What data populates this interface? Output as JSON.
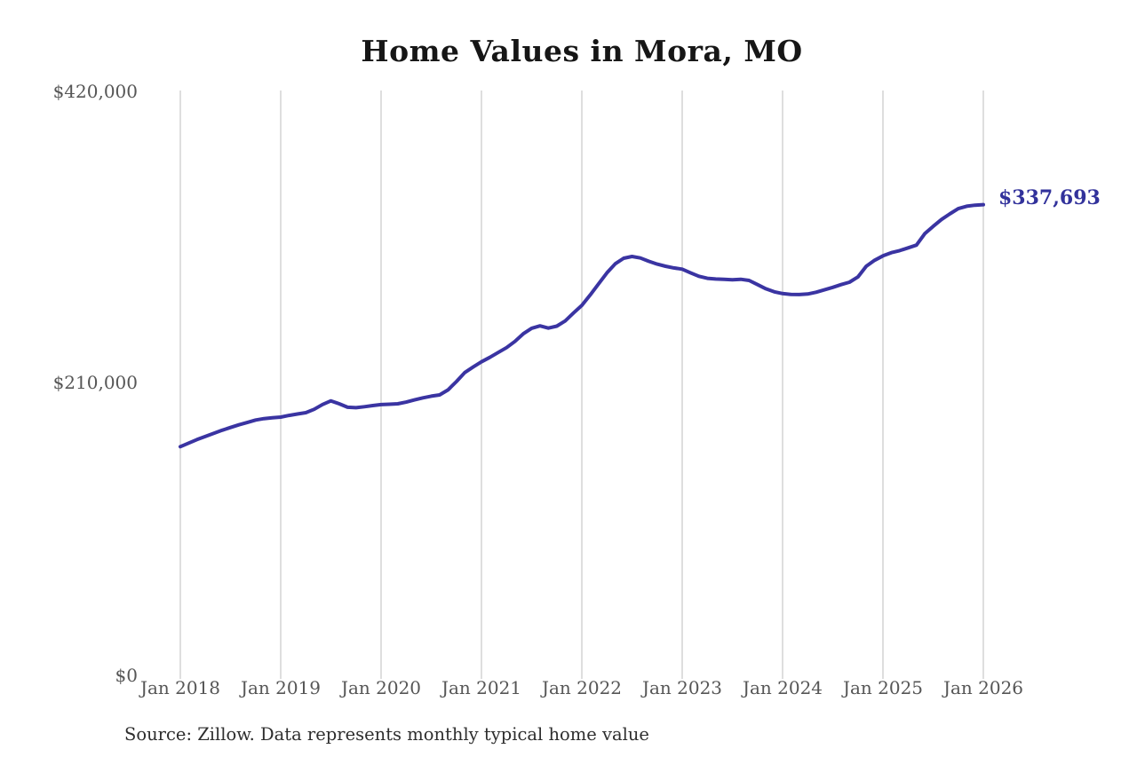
{
  "title": "Home Values in Mora, MO",
  "source_note": "Source: Zillow. Data represents monthly typical home value",
  "annotation": {
    "end_value_label": "$337,693"
  },
  "y_axis": {
    "ticks": [
      "$420,000",
      "$210,000",
      "$0"
    ]
  },
  "x_axis": {
    "ticks": [
      "Jan 2018",
      "Jan 2019",
      "Jan 2020",
      "Jan 2021",
      "Jan 2022",
      "Jan 2023",
      "Jan 2024",
      "Jan 2025",
      "Jan 2026"
    ]
  },
  "colors": {
    "line": "#3a34a2",
    "end_label": "#32329b",
    "gridline": "#c8c8c8",
    "axis_text": "#565656",
    "title_text": "#161616",
    "source_text": "#2e2e2e",
    "background": "#ffffff"
  },
  "chart_data": {
    "type": "line",
    "title": "Home Values in Mora, MO",
    "xlabel": "",
    "ylabel": "",
    "ylim": [
      0,
      420000
    ],
    "yticks": [
      0,
      210000,
      420000
    ],
    "grid": "vertical gridlines at each January, no horizontal gridlines",
    "legend": "none",
    "x": [
      "2018-01",
      "2018-02",
      "2018-03",
      "2018-04",
      "2018-05",
      "2018-06",
      "2018-07",
      "2018-08",
      "2018-09",
      "2018-10",
      "2018-11",
      "2018-12",
      "2019-01",
      "2019-02",
      "2019-03",
      "2019-04",
      "2019-05",
      "2019-06",
      "2019-07",
      "2019-08",
      "2019-09",
      "2019-10",
      "2019-11",
      "2019-12",
      "2020-01",
      "2020-02",
      "2020-03",
      "2020-04",
      "2020-05",
      "2020-06",
      "2020-07",
      "2020-08",
      "2020-09",
      "2020-10",
      "2020-11",
      "2020-12",
      "2021-01",
      "2021-02",
      "2021-03",
      "2021-04",
      "2021-05",
      "2021-06",
      "2021-07",
      "2021-08",
      "2021-09",
      "2021-10",
      "2021-11",
      "2021-12",
      "2022-01",
      "2022-02",
      "2022-03",
      "2022-04",
      "2022-05",
      "2022-06",
      "2022-07",
      "2022-08",
      "2022-09",
      "2022-10",
      "2022-11",
      "2022-12",
      "2023-01",
      "2023-02",
      "2023-03",
      "2023-04",
      "2023-05",
      "2023-06",
      "2023-07",
      "2023-08",
      "2023-09",
      "2023-10",
      "2023-11",
      "2023-12",
      "2024-01",
      "2024-02",
      "2024-03",
      "2024-04",
      "2024-05",
      "2024-06",
      "2024-07",
      "2024-08",
      "2024-09",
      "2024-10",
      "2024-11",
      "2024-12",
      "2025-01",
      "2025-02",
      "2025-03",
      "2025-04",
      "2025-05",
      "2025-06",
      "2025-07",
      "2025-08",
      "2025-09",
      "2025-10",
      "2025-11",
      "2025-12",
      "2026-01"
    ],
    "values": [
      163100,
      165600,
      168200,
      170500,
      172700,
      174900,
      176900,
      178800,
      180500,
      182300,
      183300,
      183900,
      184400,
      185600,
      186600,
      187600,
      190000,
      193500,
      196100,
      194000,
      191500,
      191200,
      191900,
      192700,
      193400,
      193700,
      194000,
      195200,
      196800,
      198300,
      199500,
      200400,
      204000,
      210000,
      216500,
      220500,
      224300,
      227500,
      231000,
      234500,
      239000,
      244500,
      248500,
      250200,
      248600,
      250000,
      253700,
      259500,
      265000,
      272500,
      280500,
      288500,
      295000,
      299000,
      300300,
      299200,
      296800,
      294800,
      293200,
      292000,
      291100,
      288500,
      286000,
      284500,
      284000,
      283800,
      283500,
      283800,
      283000,
      280000,
      277000,
      274800,
      273500,
      272900,
      272800,
      273200,
      274500,
      276200,
      278000,
      280000,
      281700,
      285500,
      293200,
      297500,
      300700,
      303000,
      304500,
      306500,
      308500,
      316700,
      322000,
      327000,
      331000,
      334800,
      336500,
      337300,
      337693
    ],
    "annotation": {
      "x": "2026-01",
      "value": 337693,
      "label": "$337,693"
    }
  }
}
